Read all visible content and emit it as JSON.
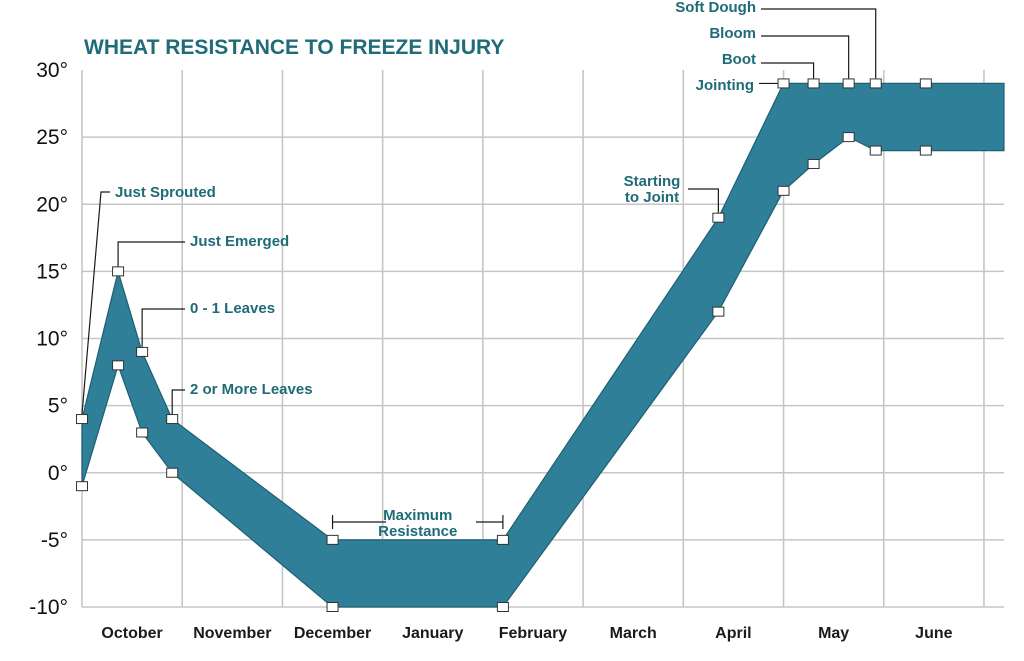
{
  "chart_data": {
    "type": "area",
    "title": "WHEAT RESISTANCE TO FREEZE INJURY",
    "xlabel": "",
    "ylabel": "",
    "grid": true,
    "xlim": [
      0,
      9.2
    ],
    "ylim": [
      -10,
      30
    ],
    "y_ticks": [
      "-10°",
      "-5°",
      "0°",
      "5°",
      "10°",
      "15°",
      "20°",
      "25°",
      "30°"
    ],
    "y_tick_values": [
      -10,
      -5,
      0,
      5,
      10,
      15,
      20,
      25,
      30
    ],
    "categories": [
      "October",
      "November",
      "December",
      "January",
      "February",
      "March",
      "April",
      "May",
      "June"
    ],
    "series": [
      {
        "role": "upper",
        "x": [
          0,
          0.36,
          0.6,
          0.9,
          2.5,
          4.2,
          6.35,
          7.0,
          7.3,
          7.65,
          7.92,
          8.42,
          9.2
        ],
        "values": [
          4,
          15,
          9,
          4,
          -5,
          -5,
          19,
          29,
          29,
          29,
          29,
          29,
          29
        ]
      },
      {
        "role": "lower",
        "x": [
          0,
          0.36,
          0.6,
          0.9,
          2.5,
          4.2,
          6.35,
          7.0,
          7.3,
          7.65,
          7.92,
          8.42,
          9.2
        ],
        "values": [
          -1,
          8,
          3,
          0,
          -10,
          -10,
          12,
          21,
          23,
          25,
          24,
          24,
          24
        ]
      }
    ],
    "markers": [
      {
        "x": 0,
        "y": 4
      },
      {
        "x": 0,
        "y": -1
      },
      {
        "x": 0.36,
        "y": 15
      },
      {
        "x": 0.36,
        "y": 8
      },
      {
        "x": 0.6,
        "y": 9
      },
      {
        "x": 0.6,
        "y": 3
      },
      {
        "x": 0.9,
        "y": 4
      },
      {
        "x": 0.9,
        "y": 0
      },
      {
        "x": 2.5,
        "y": -5
      },
      {
        "x": 2.5,
        "y": -10
      },
      {
        "x": 4.2,
        "y": -5
      },
      {
        "x": 4.2,
        "y": -10
      },
      {
        "x": 6.35,
        "y": 19
      },
      {
        "x": 6.35,
        "y": 12
      },
      {
        "x": 7.0,
        "y": 29
      },
      {
        "x": 7.0,
        "y": 21
      },
      {
        "x": 7.3,
        "y": 29
      },
      {
        "x": 7.3,
        "y": 23
      },
      {
        "x": 7.65,
        "y": 29
      },
      {
        "x": 7.65,
        "y": 25
      },
      {
        "x": 7.92,
        "y": 29
      },
      {
        "x": 7.92,
        "y": 24
      },
      {
        "x": 8.42,
        "y": 29
      },
      {
        "x": 8.42,
        "y": 24
      }
    ],
    "annotations": [
      {
        "text": "Just Sprouted",
        "x": 0,
        "y": 4
      },
      {
        "text": "Just Emerged",
        "x": 0.36,
        "y": 15
      },
      {
        "text": "0 - 1 Leaves",
        "x": 0.6,
        "y": 9
      },
      {
        "text": "2 or More Leaves",
        "x": 0.9,
        "y": 4
      },
      {
        "text": "Maximum Resistance",
        "x_range": [
          2.5,
          4.2
        ],
        "y": -5
      },
      {
        "text": "Starting to Joint",
        "x": 6.35,
        "y": 19
      },
      {
        "text": "Jointing",
        "x": 7.0,
        "y": 29
      },
      {
        "text": "Boot",
        "x": 7.3,
        "y": 29
      },
      {
        "text": "Bloom",
        "x": 7.65,
        "y": 29
      },
      {
        "text": "Soft Dough",
        "x": 7.92,
        "y": 29
      }
    ],
    "colors": {
      "band": "#2f7f99",
      "band_stroke": "#1f5f73",
      "title": "#1f6b78",
      "annotation": "#1f6b78",
      "grid": "#c6c6c6"
    }
  }
}
